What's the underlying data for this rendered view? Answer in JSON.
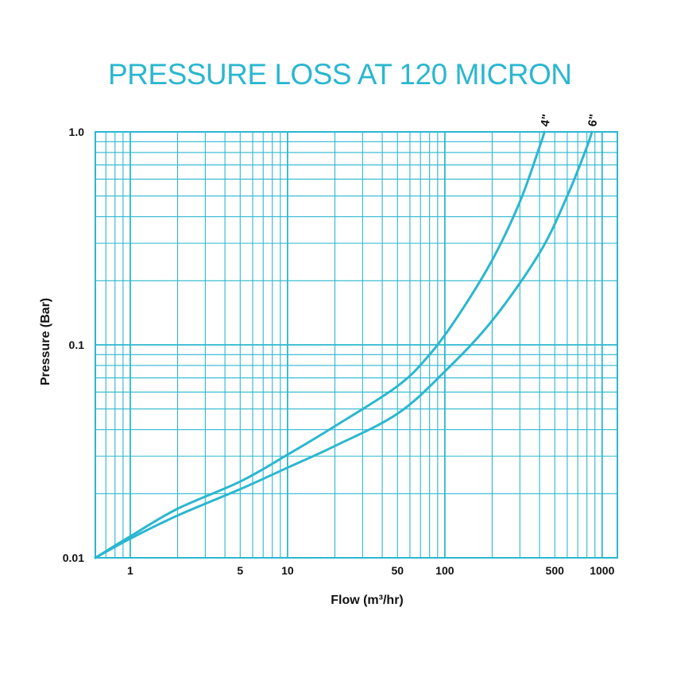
{
  "chart_data": {
    "type": "line",
    "title": "PRESSURE LOSS AT 120 MICRON",
    "xlabel": "Flow (m³/hr)",
    "ylabel": "Pressure (Bar)",
    "x_scale": "log",
    "y_scale": "log",
    "xlim": [
      0.6,
      1250
    ],
    "ylim": [
      0.01,
      1.0
    ],
    "x_ticks": [
      {
        "value": 1,
        "label": "1"
      },
      {
        "value": 5,
        "label": "5"
      },
      {
        "value": 10,
        "label": "10"
      },
      {
        "value": 50,
        "label": "50"
      },
      {
        "value": 100,
        "label": "100"
      },
      {
        "value": 500,
        "label": "500"
      },
      {
        "value": 1000,
        "label": "1000"
      }
    ],
    "y_ticks": [
      {
        "value": 0.01,
        "label": "0.01"
      },
      {
        "value": 0.1,
        "label": "0.1"
      },
      {
        "value": 1.0,
        "label": "1.0"
      }
    ],
    "grid": true,
    "series": [
      {
        "name": "4\"",
        "label": "4\"",
        "x": [
          0.6,
          1,
          2,
          5,
          10,
          20,
          50,
          80,
          120,
          200,
          300,
          400,
          430
        ],
        "y": [
          0.01,
          0.0126,
          0.017,
          0.0228,
          0.0305,
          0.0415,
          0.064,
          0.09,
          0.135,
          0.25,
          0.47,
          0.85,
          1.0
        ]
      },
      {
        "name": "6\"",
        "label": "6\"",
        "x": [
          0.6,
          1,
          2,
          5,
          10,
          20,
          50,
          100,
          200,
          400,
          600,
          800,
          860
        ],
        "y": [
          0.01,
          0.0123,
          0.0158,
          0.021,
          0.0265,
          0.0335,
          0.0475,
          0.075,
          0.13,
          0.27,
          0.5,
          0.85,
          1.0
        ]
      }
    ]
  },
  "colors": {
    "accent": "#2bb7cf",
    "grid": "#2bb7cf",
    "text": "#111111"
  }
}
